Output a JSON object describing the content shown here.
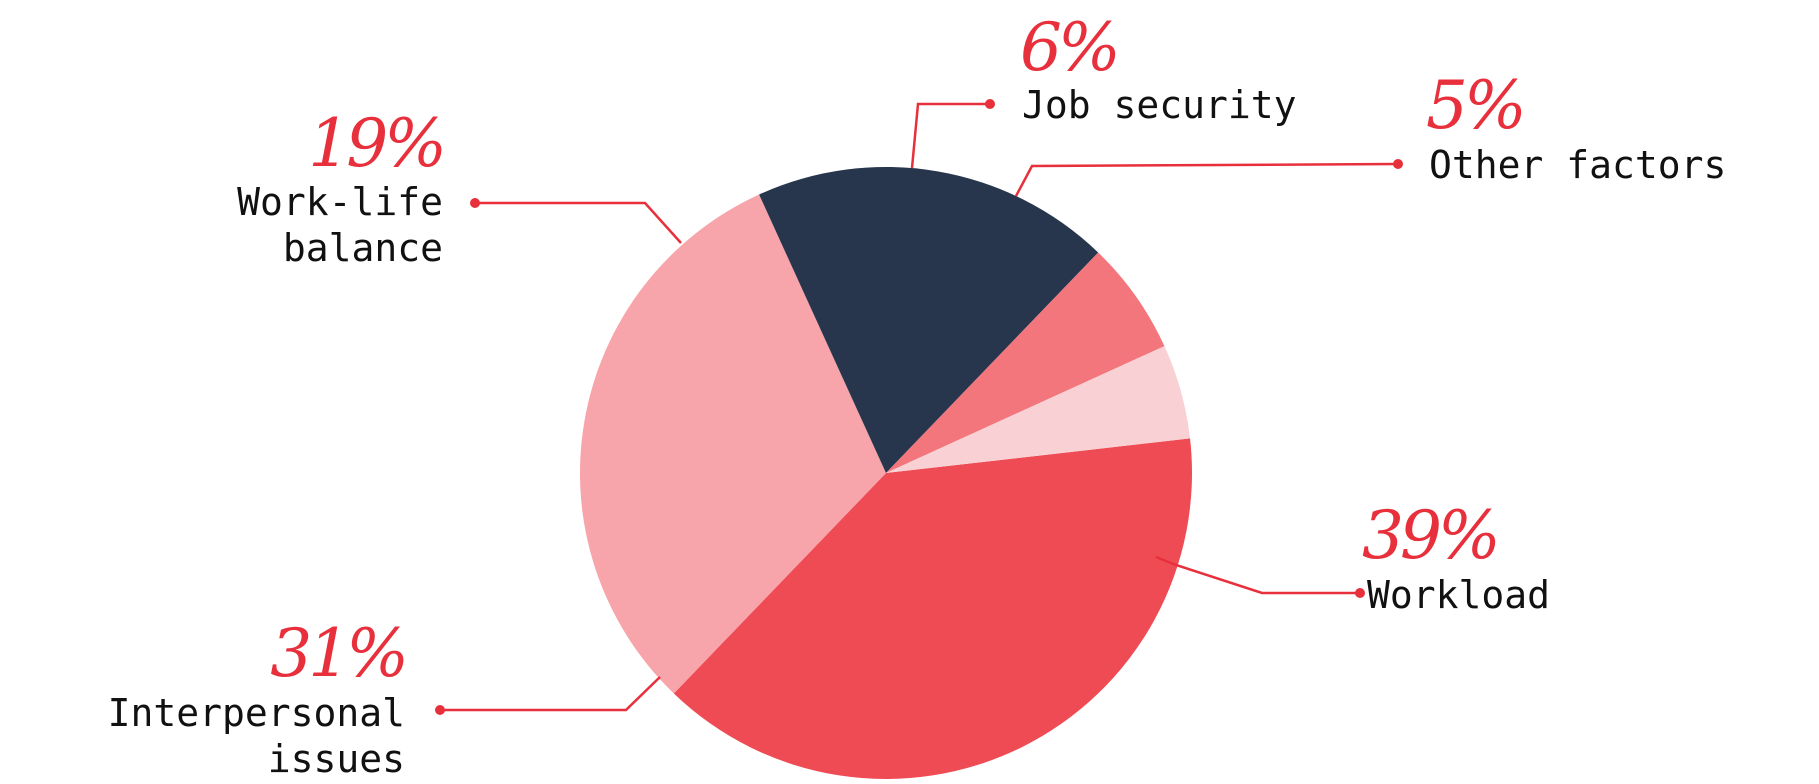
{
  "chart_data": {
    "type": "pie",
    "slices": [
      {
        "label": "Workload",
        "lines": [
          "Workload"
        ],
        "percent_label": "39%",
        "value": 39,
        "color": "#ef4b54"
      },
      {
        "label": "Interpersonal issues",
        "lines": [
          "Interpersonal",
          "issues"
        ],
        "percent_label": "31%",
        "value": 31,
        "color": "#f7a4aa"
      },
      {
        "label": "Work-life balance",
        "lines": [
          "Work-life",
          "balance"
        ],
        "percent_label": "19%",
        "value": 19,
        "color": "#27364d"
      },
      {
        "label": "Job security",
        "lines": [
          "Job security"
        ],
        "percent_label": "6%",
        "value": 6,
        "color": "#f3767c"
      },
      {
        "label": "Other factors",
        "lines": [
          "Other factors"
        ],
        "percent_label": "5%",
        "value": 5,
        "color": "#f9d1d4"
      }
    ],
    "accent_color": "#e8303c",
    "label_color": "#111111"
  }
}
